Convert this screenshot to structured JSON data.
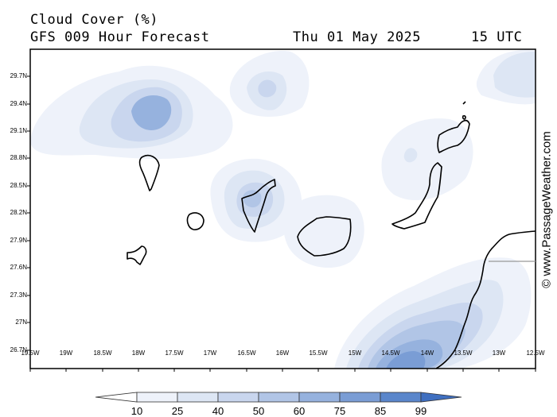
{
  "header": {
    "title": "Cloud Cover (%)",
    "model": "GFS 009 Hour Forecast",
    "date": "Thu 01 May 2025",
    "time": "15 UTC"
  },
  "credit": "© www.PassageWeather.com",
  "map": {
    "lat_labels": [
      "29.7N",
      "29.4N",
      "29.1N",
      "28.8N",
      "28.5N",
      "28.2N",
      "27.9N",
      "27.6N",
      "27.3N",
      "27N",
      "26.7N"
    ],
    "lon_labels": [
      "19.5W",
      "19W",
      "18.5W",
      "18W",
      "17.5W",
      "17W",
      "16.5W",
      "16W",
      "15.5W",
      "15W",
      "14.5W",
      "14W",
      "13.5W",
      "13W",
      "12.5W"
    ]
  },
  "colorbar": {
    "labels": [
      "10",
      "25",
      "40",
      "50",
      "60",
      "75",
      "85",
      "99"
    ],
    "colors": [
      "#ffffff",
      "#eef2fa",
      "#dde6f4",
      "#c9d6ee",
      "#b1c5e6",
      "#96b2de",
      "#7a9dd5",
      "#5a86cb",
      "#3f6fc0"
    ]
  },
  "cloud_colors": {
    "c25": "#eef2fa",
    "c40": "#dde6f4",
    "c50": "#c9d6ee",
    "c60": "#b1c5e6",
    "c75": "#96b2de",
    "c85": "#7a9dd5"
  }
}
